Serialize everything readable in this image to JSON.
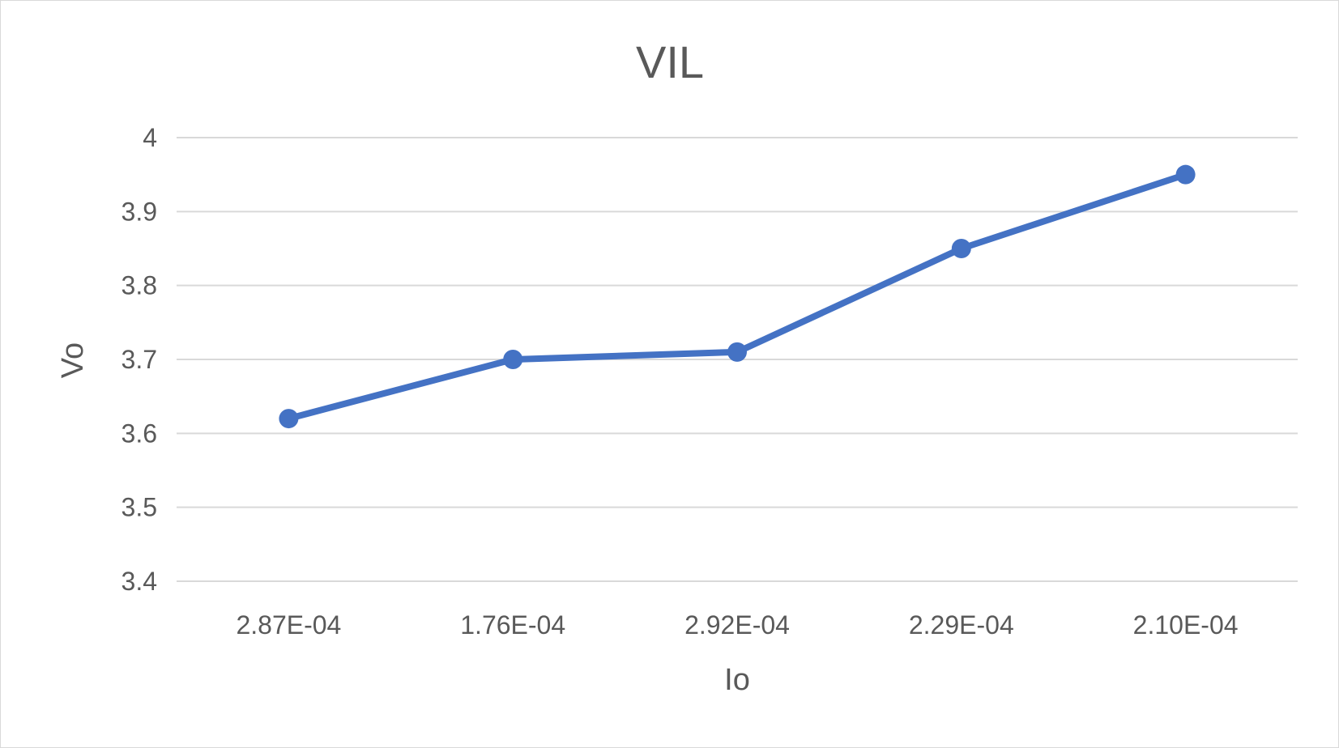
{
  "chart_data": {
    "type": "line",
    "title": "VIL",
    "xlabel": "Io",
    "ylabel": "Vo",
    "categories": [
      "2.87E-04",
      "1.76E-04",
      "2.92E-04",
      "2.29E-04",
      "2.10E-04"
    ],
    "series": [
      {
        "values": [
          3.62,
          3.7,
          3.71,
          3.85,
          3.95
        ],
        "color": "#4472c4"
      }
    ],
    "ylim": [
      3.4,
      4.0
    ],
    "yticks": [
      3.4,
      3.5,
      3.6,
      3.7,
      3.8,
      3.9,
      4
    ],
    "ytick_labels": [
      "3.4",
      "3.5",
      "3.6",
      "3.7",
      "3.8",
      "3.9",
      "4"
    ],
    "grid": true,
    "legend": "none",
    "markers": true
  }
}
